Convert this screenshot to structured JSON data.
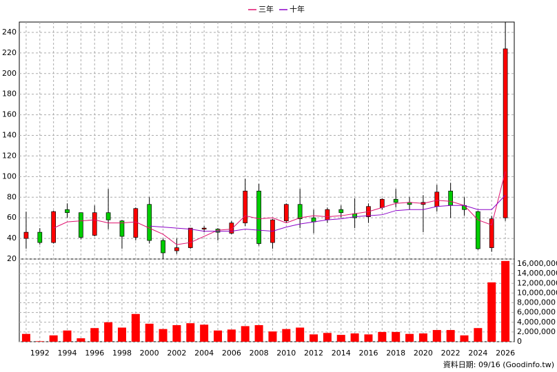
{
  "chart_data": [
    {
      "type": "candlestick",
      "x": [
        1991,
        1992,
        1993,
        1994,
        1995,
        1996,
        1997,
        1998,
        1999,
        2000,
        2001,
        2002,
        2003,
        2004,
        2005,
        2006,
        2007,
        2008,
        2009,
        2010,
        2011,
        2012,
        2013,
        2014,
        2015,
        2016,
        2017,
        2018,
        2019,
        2020,
        2021,
        2022,
        2023,
        2024,
        2025,
        2026
      ],
      "open": [
        40,
        46,
        36,
        68,
        65,
        43,
        65,
        57,
        41,
        73,
        38,
        28,
        31,
        49,
        49,
        45,
        55,
        86,
        36,
        57,
        73,
        60,
        58,
        68,
        64,
        61,
        70,
        78,
        75,
        73,
        71,
        86,
        72,
        66,
        31,
        60
      ],
      "high": [
        66,
        50,
        67,
        74,
        65,
        72,
        88,
        58,
        70,
        80,
        40,
        40,
        50,
        52,
        50,
        57,
        98,
        93,
        59,
        74,
        88,
        68,
        70,
        72,
        79,
        74,
        79,
        88,
        80,
        82,
        92,
        94,
        80,
        67,
        62,
        250
      ],
      "low": [
        30,
        34,
        35,
        60,
        39,
        42,
        49,
        30,
        38,
        35,
        19,
        25,
        30,
        46,
        38,
        44,
        52,
        33,
        30,
        55,
        50,
        45,
        55,
        60,
        50,
        55,
        68,
        70,
        68,
        46,
        66,
        60,
        62,
        29,
        27,
        57
      ],
      "close": [
        46,
        36,
        66,
        65,
        41,
        65,
        58,
        42,
        69,
        38,
        26,
        31,
        50,
        50,
        46,
        55,
        86,
        35,
        58,
        73,
        59,
        56,
        68,
        65,
        60,
        71,
        78,
        75,
        73,
        75,
        85,
        72,
        68,
        30,
        59,
        224
      ],
      "up_color": "#ff0000",
      "down_color": "#00cc00",
      "series": [
        {
          "name": "三年",
          "color": "#e0106e",
          "values": [
            null,
            null,
            50,
            56,
            57,
            58,
            55,
            55,
            56,
            50,
            44,
            34,
            36,
            42,
            48,
            49,
            62,
            59,
            60,
            55,
            60,
            62,
            61,
            62,
            64,
            66,
            70,
            74,
            75,
            74,
            77,
            76,
            72,
            58,
            53,
            105
          ]
        },
        {
          "name": "十年",
          "color": "#8a00c8",
          "values": [
            null,
            null,
            null,
            null,
            null,
            null,
            null,
            null,
            null,
            52,
            51,
            50,
            49,
            47,
            47,
            47,
            49,
            48,
            47,
            51,
            54,
            56,
            58,
            59,
            61,
            62,
            63,
            67,
            68,
            68,
            71,
            72,
            72,
            68,
            68,
            82
          ]
        }
      ],
      "xlim": [
        1990.5,
        2026.65
      ],
      "xticks": [
        1992,
        1994,
        1996,
        1998,
        2000,
        2002,
        2004,
        2006,
        2008,
        2010,
        2012,
        2014,
        2016,
        2018,
        2020,
        2022,
        2024,
        2026
      ],
      "ylim": [
        20,
        250
      ],
      "yticks": [
        20,
        40,
        60,
        80,
        100,
        120,
        140,
        160,
        180,
        200,
        220,
        240
      ],
      "grid": true,
      "legend": "top"
    },
    {
      "type": "bar",
      "x": [
        1991,
        1992,
        1993,
        1994,
        1995,
        1996,
        1997,
        1998,
        1999,
        2000,
        2001,
        2002,
        2003,
        2004,
        2005,
        2006,
        2007,
        2008,
        2009,
        2010,
        2011,
        2012,
        2013,
        2014,
        2015,
        2016,
        2017,
        2018,
        2019,
        2020,
        2021,
        2022,
        2023,
        2024,
        2025,
        2026
      ],
      "values": [
        1600000,
        100000,
        1300000,
        2300000,
        700000,
        2800000,
        4000000,
        2900000,
        5700000,
        3700000,
        2600000,
        3400000,
        3800000,
        3500000,
        2300000,
        2500000,
        3200000,
        3400000,
        2100000,
        2600000,
        2900000,
        1500000,
        1800000,
        1400000,
        1700000,
        1500000,
        2000000,
        2000000,
        1600000,
        1700000,
        2400000,
        2400000,
        1300000,
        2800000,
        12200000,
        16600000
      ],
      "color": "#ff0000",
      "xlim": [
        1990.5,
        2026.65
      ],
      "ylim": [
        0,
        17000000
      ],
      "yticks": [
        0,
        {
          "value": 2000000,
          "label": "2,000,000"
        },
        {
          "value": 4000000,
          "label": "4,000,000"
        },
        {
          "value": 6000000,
          "label": "6,000,000"
        },
        {
          "value": 8000000,
          "label": "8,000,000"
        },
        {
          "value": 10000000,
          "label": "10,000,000"
        },
        {
          "value": 12000000,
          "label": "12,000,000"
        },
        {
          "value": 14000000,
          "label": "14,000,000"
        },
        {
          "value": 16000000,
          "label": "16,000,000"
        }
      ],
      "grid": true
    }
  ],
  "footer": "資料日期: 09/16 (Goodinfo.tw)"
}
